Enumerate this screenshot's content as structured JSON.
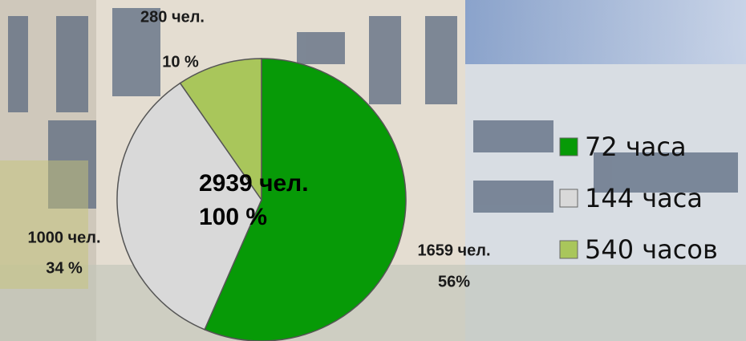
{
  "chart_data": {
    "type": "pie",
    "categories": [
      "72 часа",
      "144 часа",
      "540 часов"
    ],
    "values": [
      1659,
      1000,
      280
    ],
    "value_labels": [
      "1659 чел.",
      "1000 чел.",
      "280 чел."
    ],
    "percents": [
      56,
      34,
      10
    ],
    "percent_labels": [
      "56%",
      "34 %",
      "10 %"
    ],
    "colors": [
      "#079a07",
      "#d9d9d9",
      "#a9c65b"
    ],
    "annotations": [
      "2939 чел.",
      "100 %"
    ],
    "legend": "right"
  }
}
